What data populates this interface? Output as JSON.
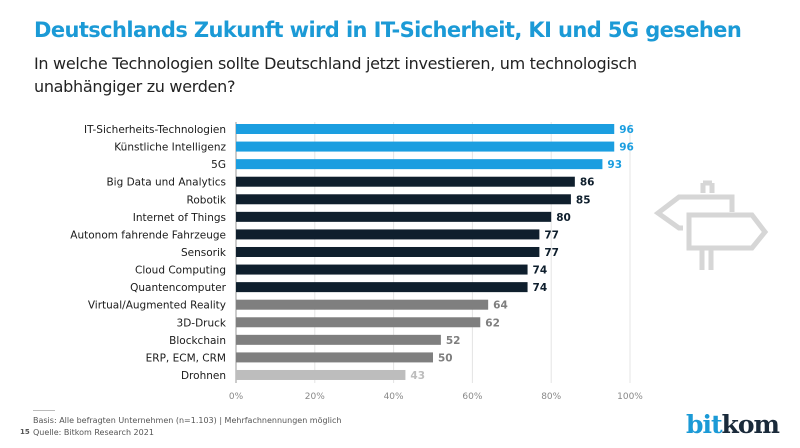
{
  "header": {
    "title": "Deutschlands Zukunft wird in IT-Sicherheit, KI und 5G gesehen",
    "subtitle": "In welche Technologien sollte Deutschland jetzt investieren, um technologisch unabhängiger zu werden?"
  },
  "chart_data": {
    "type": "bar",
    "orientation": "horizontal",
    "categories": [
      "IT-Sicherheits-Technologien",
      "Künstliche Intelligenz",
      "5G",
      "Big Data und Analytics",
      "Robotik",
      "Internet of Things",
      "Autonom fahrende Fahrzeuge",
      "Sensorik",
      "Cloud Computing",
      "Quantencomputer",
      "Virtual/Augmented Reality",
      "3D-Druck",
      "Blockchain",
      "ERP, ECM, CRM",
      "Drohnen"
    ],
    "values": [
      96,
      96,
      93,
      86,
      85,
      80,
      77,
      77,
      74,
      74,
      64,
      62,
      52,
      50,
      43
    ],
    "bar_colors": [
      "#1b9ee0",
      "#1b9ee0",
      "#1b9ee0",
      "#0f1f2d",
      "#0f1f2d",
      "#0f1f2d",
      "#0f1f2d",
      "#0f1f2d",
      "#0f1f2d",
      "#0f1f2d",
      "#7f7f7f",
      "#7f7f7f",
      "#7f7f7f",
      "#7f7f7f",
      "#bdbdbd"
    ],
    "label_colors": [
      "#1b9ee0",
      "#1b9ee0",
      "#1b9ee0",
      "#0f1f2d",
      "#0f1f2d",
      "#0f1f2d",
      "#0f1f2d",
      "#0f1f2d",
      "#0f1f2d",
      "#0f1f2d",
      "#7f7f7f",
      "#7f7f7f",
      "#7f7f7f",
      "#7f7f7f",
      "#bdbdbd"
    ],
    "xlim": [
      0,
      100
    ],
    "xticks": [
      "0%",
      "20%",
      "40%",
      "60%",
      "80%",
      "100%"
    ],
    "grid": true
  },
  "footer": {
    "basis": "Basis: Alle befragten Unternehmen (n=1.103) | Mehrfachnennungen möglich",
    "source": "Quelle: Bitkom Research 2021",
    "page": "15"
  },
  "logo": {
    "part1": "bit",
    "part2": "kom"
  },
  "icons": {
    "decoration": "signpost-icon"
  }
}
